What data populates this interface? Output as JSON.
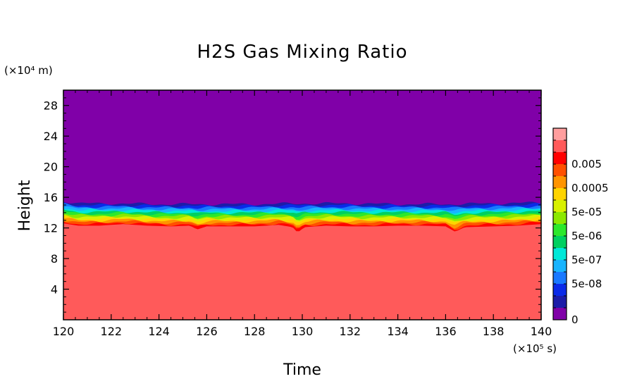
{
  "chart_data": {
    "type": "heatmap",
    "title": "H2S Gas Mixing Ratio",
    "xlabel": "Time",
    "ylabel": "Height",
    "x_unit": "(×10⁵ s)",
    "y_unit": "(×10⁴ m)",
    "xlim": [
      120,
      140
    ],
    "ylim": [
      0,
      30
    ],
    "x_ticks": [
      "120",
      "122",
      "124",
      "126",
      "128",
      "130",
      "132",
      "134",
      "136",
      "138",
      "140"
    ],
    "y_ticks": [
      "4",
      "8",
      "12",
      "16",
      "20",
      "24",
      "28"
    ],
    "colorbar": {
      "tick_labels": [
        "0",
        "5e-08",
        "5e-07",
        "5e-06",
        "5e-05",
        "0.0005",
        "0.005"
      ],
      "levels": [
        0,
        1e-08,
        5e-08,
        1e-07,
        5e-07,
        1e-06,
        5e-06,
        1e-05,
        5e-05,
        0.0001,
        0.0005,
        0.001,
        0.005,
        0.01
      ],
      "colors": [
        "#8000a8",
        "#1c1ca8",
        "#0a2ae8",
        "#1878ff",
        "#18b4ff",
        "#00e8d8",
        "#00d060",
        "#2ce82c",
        "#8ce800",
        "#d8f000",
        "#ffd400",
        "#ff9400",
        "#ff5000",
        "#ff0000",
        "#ff5a5a",
        "#ff9e9e"
      ]
    },
    "band_color_order": [
      "#ff5a5a",
      "#ff0000",
      "#ff5000",
      "#ff9400",
      "#ffd400",
      "#d8f000",
      "#8ce800",
      "#2ce82c",
      "#00d060",
      "#00e8d8",
      "#18b4ff",
      "#1878ff",
      "#0a2ae8",
      "#1c1ca8"
    ],
    "background_color": "#8000a8",
    "boundary_top_height": [
      {
        "x": 120.0,
        "y": 12.6
      },
      {
        "x": 120.6,
        "y": 12.3
      },
      {
        "x": 121.5,
        "y": 12.3
      },
      {
        "x": 122.5,
        "y": 12.5
      },
      {
        "x": 123.5,
        "y": 12.3
      },
      {
        "x": 124.5,
        "y": 12.2
      },
      {
        "x": 125.3,
        "y": 12.3
      },
      {
        "x": 125.6,
        "y": 11.8
      },
      {
        "x": 126.0,
        "y": 12.2
      },
      {
        "x": 127.0,
        "y": 12.2
      },
      {
        "x": 128.0,
        "y": 12.2
      },
      {
        "x": 129.0,
        "y": 12.4
      },
      {
        "x": 129.6,
        "y": 12.1
      },
      {
        "x": 129.8,
        "y": 11.4
      },
      {
        "x": 130.1,
        "y": 12.1
      },
      {
        "x": 131.0,
        "y": 12.3
      },
      {
        "x": 132.0,
        "y": 12.2
      },
      {
        "x": 133.0,
        "y": 12.2
      },
      {
        "x": 134.0,
        "y": 12.3
      },
      {
        "x": 135.0,
        "y": 12.3
      },
      {
        "x": 136.0,
        "y": 12.2
      },
      {
        "x": 136.4,
        "y": 11.5
      },
      {
        "x": 136.8,
        "y": 12.1
      },
      {
        "x": 138.0,
        "y": 12.2
      },
      {
        "x": 139.0,
        "y": 12.3
      },
      {
        "x": 140.0,
        "y": 12.5
      }
    ],
    "boundary_bottom_height": [
      {
        "x": 120.0,
        "y": 15.5
      },
      {
        "x": 120.6,
        "y": 15.2
      },
      {
        "x": 122.0,
        "y": 15.2
      },
      {
        "x": 124.0,
        "y": 15.1
      },
      {
        "x": 126.0,
        "y": 15.1
      },
      {
        "x": 128.0,
        "y": 15.1
      },
      {
        "x": 130.0,
        "y": 15.2
      },
      {
        "x": 132.0,
        "y": 15.2
      },
      {
        "x": 134.0,
        "y": 15.1
      },
      {
        "x": 136.0,
        "y": 15.1
      },
      {
        "x": 138.0,
        "y": 15.2
      },
      {
        "x": 140.0,
        "y": 15.3
      }
    ]
  }
}
